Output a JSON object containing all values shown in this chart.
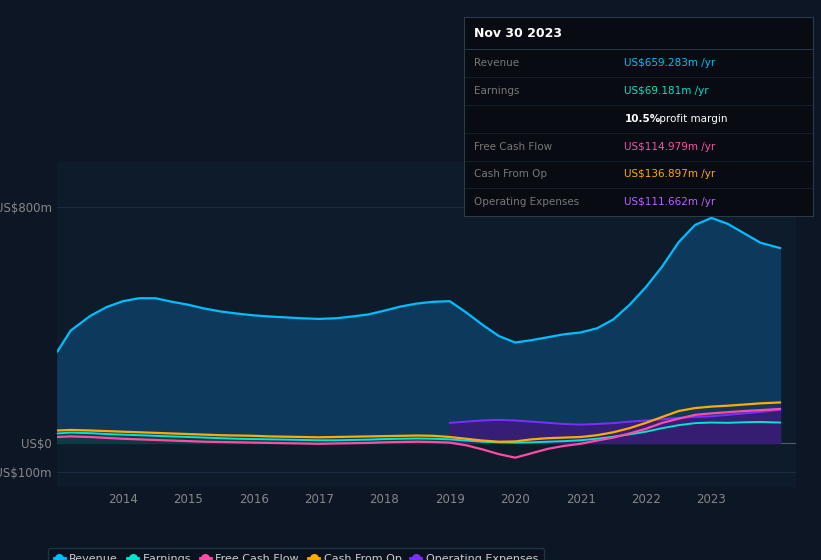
{
  "background_color": "#0c1624",
  "chart_bg_color": "#0d1b2a",
  "ylim": [
    -150,
    950
  ],
  "ytick_labels": [
    "US$800m",
    "US$0",
    "-US$100m"
  ],
  "ytick_values": [
    800,
    0,
    -100
  ],
  "xlim_start": 2013.0,
  "xlim_end": 2024.3,
  "xtick_years": [
    2014,
    2015,
    2016,
    2017,
    2018,
    2019,
    2020,
    2021,
    2022,
    2023
  ],
  "grid_color": "#1e3048",
  "grid_color2": "#243850",
  "zero_line_color": "#aaaaaa",
  "colors": {
    "revenue": "#00bfff",
    "revenue_fill": "#0d3a5c",
    "earnings": "#00e5cc",
    "earnings_fill": "#0d3a3a",
    "free_cf": "#ff4da6",
    "cash_op": "#ffaa00",
    "op_exp": "#7b2fff",
    "op_exp_fill": "#3d1a7a"
  },
  "revenue_x": [
    2013.0,
    2013.2,
    2013.5,
    2013.75,
    2014.0,
    2014.25,
    2014.5,
    2014.75,
    2015.0,
    2015.25,
    2015.5,
    2015.75,
    2016.0,
    2016.25,
    2016.5,
    2016.75,
    2017.0,
    2017.25,
    2017.5,
    2017.75,
    2018.0,
    2018.25,
    2018.5,
    2018.75,
    2019.0,
    2019.25,
    2019.5,
    2019.75,
    2020.0,
    2020.25,
    2020.5,
    2020.75,
    2021.0,
    2021.25,
    2021.5,
    2021.75,
    2022.0,
    2022.25,
    2022.5,
    2022.75,
    2023.0,
    2023.25,
    2023.5,
    2023.75,
    2024.05
  ],
  "revenue_y": [
    310,
    380,
    430,
    460,
    480,
    490,
    490,
    478,
    468,
    455,
    445,
    438,
    432,
    428,
    425,
    422,
    420,
    422,
    428,
    435,
    448,
    462,
    472,
    478,
    480,
    442,
    400,
    362,
    340,
    348,
    358,
    368,
    374,
    388,
    418,
    468,
    528,
    598,
    680,
    738,
    762,
    742,
    710,
    678,
    660
  ],
  "earnings_x": [
    2013.0,
    2013.2,
    2013.5,
    2013.75,
    2014.0,
    2014.25,
    2014.5,
    2014.75,
    2015.0,
    2015.25,
    2015.5,
    2015.75,
    2016.0,
    2016.25,
    2016.5,
    2016.75,
    2017.0,
    2017.25,
    2017.5,
    2017.75,
    2018.0,
    2018.25,
    2018.5,
    2018.75,
    2019.0,
    2019.25,
    2019.5,
    2019.75,
    2020.0,
    2020.25,
    2020.5,
    2020.75,
    2021.0,
    2021.25,
    2021.5,
    2021.75,
    2022.0,
    2022.25,
    2022.5,
    2022.75,
    2023.0,
    2023.25,
    2023.5,
    2023.75,
    2024.05
  ],
  "earnings_y": [
    32,
    35,
    33,
    30,
    28,
    26,
    24,
    22,
    20,
    18,
    16,
    14,
    13,
    12,
    11,
    10,
    9,
    9,
    10,
    11,
    13,
    14,
    15,
    14,
    12,
    8,
    4,
    2,
    1,
    2,
    4,
    6,
    9,
    14,
    21,
    29,
    38,
    50,
    60,
    67,
    69,
    68,
    70,
    71,
    69
  ],
  "free_cf_x": [
    2013.0,
    2013.2,
    2013.5,
    2013.75,
    2014.0,
    2014.25,
    2014.5,
    2014.75,
    2015.0,
    2015.25,
    2015.5,
    2015.75,
    2016.0,
    2016.25,
    2016.5,
    2016.75,
    2017.0,
    2017.25,
    2017.5,
    2017.75,
    2018.0,
    2018.25,
    2018.5,
    2018.75,
    2019.0,
    2019.25,
    2019.5,
    2019.75,
    2020.0,
    2020.25,
    2020.5,
    2020.75,
    2021.0,
    2021.25,
    2021.5,
    2021.75,
    2022.0,
    2022.25,
    2022.5,
    2022.75,
    2023.0,
    2023.25,
    2023.5,
    2023.75,
    2024.05
  ],
  "free_cf_y": [
    20,
    22,
    20,
    17,
    14,
    12,
    10,
    8,
    6,
    4,
    3,
    2,
    1,
    0,
    -1,
    -2,
    -3,
    -2,
    -1,
    0,
    2,
    3,
    4,
    3,
    1,
    -8,
    -22,
    -38,
    -50,
    -35,
    -20,
    -10,
    -3,
    8,
    18,
    32,
    48,
    68,
    82,
    95,
    100,
    104,
    108,
    111,
    115
  ],
  "cash_op_x": [
    2013.0,
    2013.2,
    2013.5,
    2013.75,
    2014.0,
    2014.25,
    2014.5,
    2014.75,
    2015.0,
    2015.25,
    2015.5,
    2015.75,
    2016.0,
    2016.25,
    2016.5,
    2016.75,
    2017.0,
    2017.25,
    2017.5,
    2017.75,
    2018.0,
    2018.25,
    2018.5,
    2018.75,
    2019.0,
    2019.25,
    2019.5,
    2019.75,
    2020.0,
    2020.25,
    2020.5,
    2020.75,
    2021.0,
    2021.25,
    2021.5,
    2021.75,
    2022.0,
    2022.25,
    2022.5,
    2022.75,
    2023.0,
    2023.25,
    2023.5,
    2023.75,
    2024.05
  ],
  "cash_op_y": [
    42,
    44,
    42,
    40,
    38,
    36,
    34,
    32,
    30,
    28,
    26,
    25,
    24,
    22,
    21,
    20,
    19,
    20,
    21,
    22,
    23,
    24,
    25,
    24,
    20,
    14,
    8,
    4,
    5,
    12,
    16,
    18,
    20,
    26,
    36,
    50,
    68,
    88,
    108,
    118,
    123,
    126,
    130,
    134,
    137
  ],
  "op_exp_x": [
    2019.0,
    2019.25,
    2019.5,
    2019.75,
    2020.0,
    2020.25,
    2020.5,
    2020.75,
    2021.0,
    2021.25,
    2021.5,
    2021.75,
    2022.0,
    2022.25,
    2022.5,
    2022.75,
    2023.0,
    2023.25,
    2023.5,
    2023.75,
    2024.05
  ],
  "op_exp_y": [
    68,
    72,
    76,
    78,
    76,
    72,
    68,
    64,
    62,
    64,
    67,
    72,
    76,
    80,
    85,
    88,
    90,
    95,
    100,
    105,
    112
  ],
  "title": "Nov 30 2023",
  "info_rows": [
    {
      "label": "Revenue",
      "value": "US$659.283m",
      "suffix": " /yr",
      "color": "#00bfff"
    },
    {
      "label": "Earnings",
      "value": "US$69.181m",
      "suffix": " /yr",
      "color": "#00e5cc"
    },
    {
      "label": "",
      "value": "10.5%",
      "suffix": " profit margin",
      "color": "#ffffff",
      "is_margin": true
    },
    {
      "label": "Free Cash Flow",
      "value": "US$114.979m",
      "suffix": " /yr",
      "color": "#ff4da6"
    },
    {
      "label": "Cash From Op",
      "value": "US$136.897m",
      "suffix": " /yr",
      "color": "#ffaa00"
    },
    {
      "label": "Operating Expenses",
      "value": "US$111.662m",
      "suffix": " /yr",
      "color": "#bf5fff"
    }
  ],
  "legend": [
    {
      "label": "Revenue",
      "color": "#00bfff"
    },
    {
      "label": "Earnings",
      "color": "#00e5cc"
    },
    {
      "label": "Free Cash Flow",
      "color": "#ff4da6"
    },
    {
      "label": "Cash From Op",
      "color": "#ffaa00"
    },
    {
      "label": "Operating Expenses",
      "color": "#7b2fff"
    }
  ]
}
